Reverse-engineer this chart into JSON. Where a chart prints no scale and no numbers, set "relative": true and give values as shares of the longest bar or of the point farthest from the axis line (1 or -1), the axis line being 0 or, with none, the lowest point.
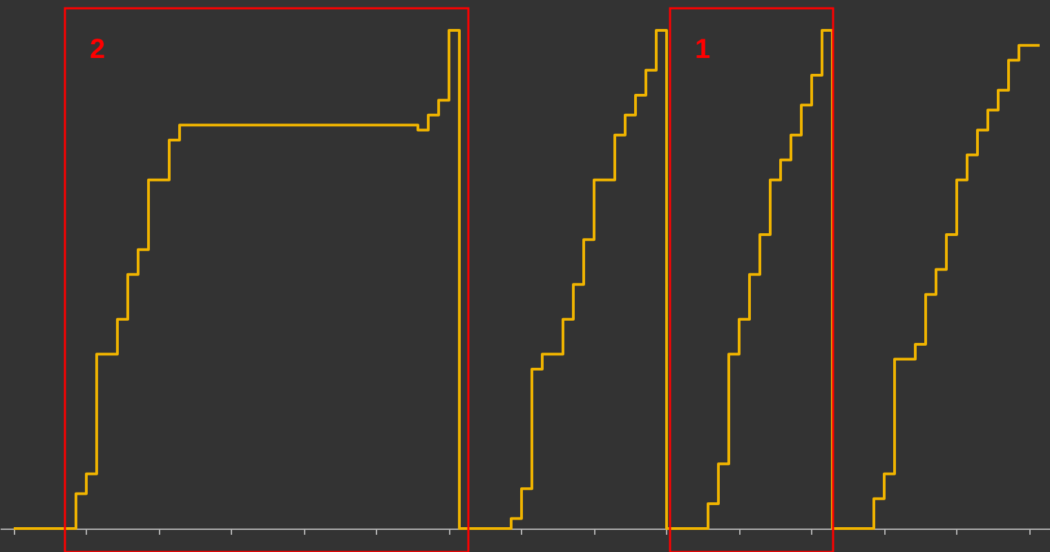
{
  "chart_data": {
    "type": "step",
    "relative": true,
    "categories": [
      null,
      null,
      null,
      null,
      null,
      null,
      null,
      null,
      null,
      null,
      null,
      null,
      null,
      null,
      null,
      null,
      null,
      null,
      null,
      null,
      null,
      null,
      null,
      null,
      null,
      null,
      null,
      null,
      null,
      null,
      null,
      null,
      null,
      null,
      null,
      null,
      null,
      null,
      null,
      null,
      null,
      null,
      null,
      null,
      null,
      null,
      null,
      null,
      null,
      null,
      null,
      null,
      null,
      null,
      null,
      null,
      null,
      null,
      null,
      null,
      null,
      null,
      null,
      null,
      null,
      null,
      null,
      null,
      null,
      null,
      null,
      null,
      null,
      null,
      null,
      null,
      null,
      null,
      null,
      null,
      null,
      null,
      null,
      null,
      null,
      null,
      null,
      null,
      null,
      null,
      null,
      null,
      null,
      null,
      null,
      null,
      null,
      null,
      null,
      null
    ],
    "series": [
      {
        "color": "#f0b400",
        "values": [
          0,
          0,
          0,
          0,
          0,
          0,
          0.07,
          0.11,
          0.35,
          0.35,
          0.42,
          0.51,
          0.56,
          0.7,
          0.7,
          0.78,
          0.81,
          0.81,
          0.81,
          0.81,
          0.81,
          0.81,
          0.81,
          0.81,
          0.81,
          0.81,
          0.81,
          0.81,
          0.81,
          0.81,
          0.81,
          0.81,
          0.81,
          0.81,
          0.81,
          0.81,
          0.81,
          0.81,
          0.81,
          0.8,
          0.83,
          0.86,
          1,
          0,
          0,
          0,
          0,
          0,
          0.02,
          0.08,
          0.32,
          0.35,
          0.35,
          0.42,
          0.49,
          0.58,
          0.7,
          0.7,
          0.79,
          0.83,
          0.87,
          0.92,
          1,
          0,
          0,
          0,
          0,
          0.05,
          0.13,
          0.35,
          0.42,
          0.51,
          0.59,
          0.7,
          0.74,
          0.79,
          0.85,
          0.91,
          1,
          0,
          0,
          0,
          0,
          0.06,
          0.11,
          0.34,
          0.34,
          0.37,
          0.47,
          0.52,
          0.59,
          0.7,
          0.75,
          0.8,
          0.84,
          0.88,
          0.94,
          0.97,
          0.97,
          0.97
        ]
      }
    ],
    "annotations": [
      "2",
      "1"
    ]
  }
}
